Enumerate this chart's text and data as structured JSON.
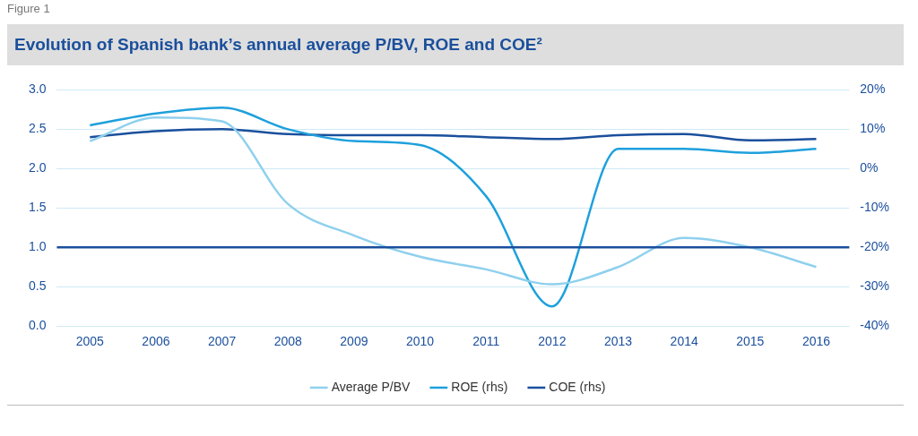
{
  "chart_data": {
    "type": "line",
    "title": "Evolution of Spanish bank’s annual average P/BV, ROE and COE²",
    "annotations": [
      "Figure 1"
    ],
    "categories": [
      "2005",
      "2006",
      "2007",
      "2008",
      "2009",
      "2010",
      "2011",
      "2012",
      "2013",
      "2014",
      "2015",
      "2016"
    ],
    "series": [
      {
        "name": "Average P/BV",
        "color": "#8fd0ee",
        "values": [
          2.35,
          2.65,
          2.6,
          1.55,
          1.15,
          0.88,
          0.72,
          0.53,
          0.75,
          1.12,
          1.0,
          0.75
        ]
      },
      {
        "name": "ROE (rhs)",
        "color": "#1ea0dc",
        "axis": "y2",
        "values": [
          11,
          14,
          15.5,
          10,
          7,
          6,
          -7,
          -35,
          5,
          5,
          4,
          5
        ]
      },
      {
        "name": "COE (rhs)",
        "color": "#1a4f9c",
        "axis": "y2",
        "values": [
          8,
          9.5,
          10,
          8.8,
          8.5,
          8.5,
          8,
          7.5,
          8.5,
          8.8,
          7.2,
          7.5
        ]
      }
    ],
    "ylim": [
      0,
      3
    ],
    "yticks": [
      {
        "value": 0,
        "label": "0.0"
      },
      {
        "value": 0.5,
        "label": "0.5"
      },
      {
        "value": 1,
        "label": "1.0"
      },
      {
        "value": 1.5,
        "label": "1.5"
      },
      {
        "value": 2,
        "label": "2.0"
      },
      {
        "value": 2.5,
        "label": "2.5"
      },
      {
        "value": 3,
        "label": "3.0"
      }
    ],
    "y2lim": [
      -40,
      20
    ],
    "y2ticks": [
      {
        "value": -40,
        "label": "-40%"
      },
      {
        "value": -30,
        "label": "-30%"
      },
      {
        "value": -20,
        "label": "-20%"
      },
      {
        "value": -10,
        "label": "-10%"
      },
      {
        "value": 0,
        "label": "0%"
      },
      {
        "value": 10,
        "label": "10%"
      },
      {
        "value": 20,
        "label": "20%"
      }
    ],
    "ref_lines": [
      {
        "axis": "y",
        "value": 1,
        "color": "#1a4f9c"
      }
    ],
    "grid": "y",
    "legend": "bottom",
    "marker": "none",
    "line_style": "solid"
  }
}
